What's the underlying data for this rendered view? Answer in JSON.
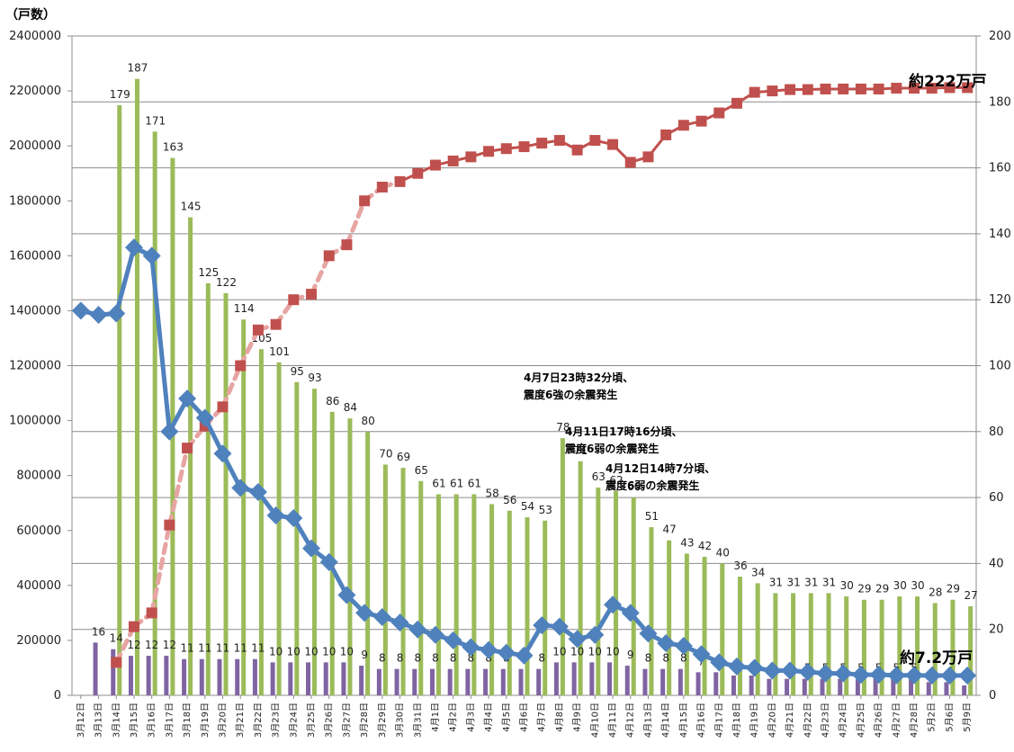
{
  "chart_data": {
    "type": "bar",
    "left_axis_unit": "（戸数）",
    "y_left_lim": [
      0,
      2400000
    ],
    "y_left_ticks": [
      0,
      200000,
      400000,
      600000,
      800000,
      1000000,
      1200000,
      1400000,
      1600000,
      1800000,
      2000000,
      2200000,
      2400000
    ],
    "y_right_lim": [
      0,
      200
    ],
    "y_right_ticks": [
      0,
      20,
      40,
      60,
      80,
      100,
      120,
      140,
      160,
      180,
      200
    ],
    "grid": true,
    "categories": [
      "3月12日",
      "3月13日",
      "3月14日",
      "3月15日",
      "3月16日",
      "3月17日",
      "3月18日",
      "3月19日",
      "3月20日",
      "3月21日",
      "3月22日",
      "3月23日",
      "3月24日",
      "3月25日",
      "3月26日",
      "3月27日",
      "3月28日",
      "3月29日",
      "3月30日",
      "3月31日",
      "4月1日",
      "4月2日",
      "4月3日",
      "4月4日",
      "4月5日",
      "4月6日",
      "4月7日",
      "4月8日",
      "4月9日",
      "4月10日",
      "4月11日",
      "4月12日",
      "4月13日",
      "4月14日",
      "4月15日",
      "4月16日",
      "4月17日",
      "4月18日",
      "4月19日",
      "4月20日",
      "4月21日",
      "4月22日",
      "4月23日",
      "4月24日",
      "4月25日",
      "4月26日",
      "4月27日",
      "4月28日",
      "5月2日",
      "5月6日",
      "5月9日"
    ],
    "series": [
      {
        "axis": "right",
        "color": "#9bbb59",
        "labels": [
          null,
          null,
          "179",
          "187",
          "171",
          "163",
          "145",
          "125",
          "122",
          "114",
          "105",
          "101",
          "95",
          "93",
          "86",
          "84",
          "80",
          "70",
          "69",
          "65",
          "61",
          "61",
          "61",
          "58",
          "56",
          "54",
          "53",
          "78",
          "71",
          "63",
          "62",
          "60",
          "51",
          "47",
          "43",
          "42",
          "40",
          "36",
          "34",
          "31",
          "31",
          "31",
          "31",
          "30",
          "29",
          "29",
          "30",
          "30",
          "28",
          "29",
          "27"
        ],
        "values": [
          null,
          null,
          179,
          187,
          171,
          163,
          145,
          125,
          122,
          114,
          105,
          101,
          95,
          93,
          86,
          84,
          80,
          70,
          69,
          65,
          61,
          61,
          61,
          58,
          56,
          54,
          53,
          78,
          71,
          63,
          62,
          60,
          51,
          47,
          43,
          42,
          40,
          36,
          34,
          31,
          31,
          31,
          31,
          30,
          29,
          29,
          30,
          30,
          28,
          29,
          27
        ]
      },
      {
        "axis": "right",
        "color": "#8064a2",
        "labels": [
          null,
          "16",
          "14",
          "12",
          "12",
          "12",
          "11",
          "11",
          "11",
          "11",
          "11",
          "10",
          "10",
          "10",
          "10",
          "10",
          "9",
          "8",
          "8",
          "8",
          "8",
          "8",
          "8",
          "8",
          "8",
          "8",
          "8",
          "10",
          "10",
          "10",
          "10",
          "9",
          "8",
          "8",
          "8",
          "7",
          "7",
          "6",
          "6",
          "5",
          "5",
          "5",
          "5",
          "5",
          "5",
          "5",
          "5",
          "5",
          "4",
          "4",
          "3"
        ],
        "values": [
          null,
          16,
          14,
          12,
          12,
          12,
          11,
          11,
          11,
          11,
          11,
          10,
          10,
          10,
          10,
          10,
          9,
          8,
          8,
          8,
          8,
          8,
          8,
          8,
          8,
          8,
          8,
          10,
          10,
          10,
          10,
          9,
          8,
          8,
          8,
          7,
          7,
          6,
          6,
          5,
          5,
          5,
          5,
          5,
          5,
          5,
          5,
          5,
          4,
          4,
          3
        ]
      },
      {
        "type": "line",
        "axis": "left",
        "color": "#c0504d",
        "marker": "square",
        "end_label": "約222万戸",
        "values": [
          null,
          null,
          120000,
          250000,
          300000,
          620000,
          900000,
          980000,
          1050000,
          1200000,
          1330000,
          1350000,
          1440000,
          1460000,
          1600000,
          1640000,
          1800000,
          1850000,
          1870000,
          1900000,
          1930000,
          1945000,
          1960000,
          1980000,
          1990000,
          1997000,
          2010000,
          2020000,
          1985000,
          2020000,
          2005000,
          1940000,
          1960000,
          2040000,
          2075000,
          2090000,
          2120000,
          2155000,
          2195000,
          2200000,
          2205000,
          2205000,
          2207000,
          2207000,
          2207000,
          2207000,
          2210000,
          2210000,
          2210000,
          2212000,
          2212000
        ]
      },
      {
        "type": "line",
        "axis": "left",
        "color": "#4f81bd",
        "marker": "diamond",
        "end_label": "約7.2万戸",
        "values": [
          1400000,
          1385000,
          1390000,
          1630000,
          1600000,
          960000,
          1080000,
          1010000,
          880000,
          755000,
          740000,
          655000,
          645000,
          535000,
          485000,
          365000,
          300000,
          285000,
          265000,
          240000,
          220000,
          200000,
          175000,
          165000,
          155000,
          145000,
          255000,
          250000,
          205000,
          220000,
          330000,
          300000,
          225000,
          190000,
          180000,
          150000,
          120000,
          105000,
          100000,
          90000,
          90000,
          85000,
          80000,
          80000,
          75000,
          75000,
          73000,
          73000,
          72000,
          72000,
          72000
        ]
      }
    ],
    "annotations": [
      {
        "lines": [
          "4月7日23時32分頃、",
          "震度6強の余震発生"
        ]
      },
      {
        "lines": [
          "4月11日17時16分頃、",
          "震度6弱の余震発生"
        ]
      },
      {
        "lines": [
          "4月12日14時7分頃、",
          "震度6弱の余震発生"
        ]
      }
    ]
  }
}
